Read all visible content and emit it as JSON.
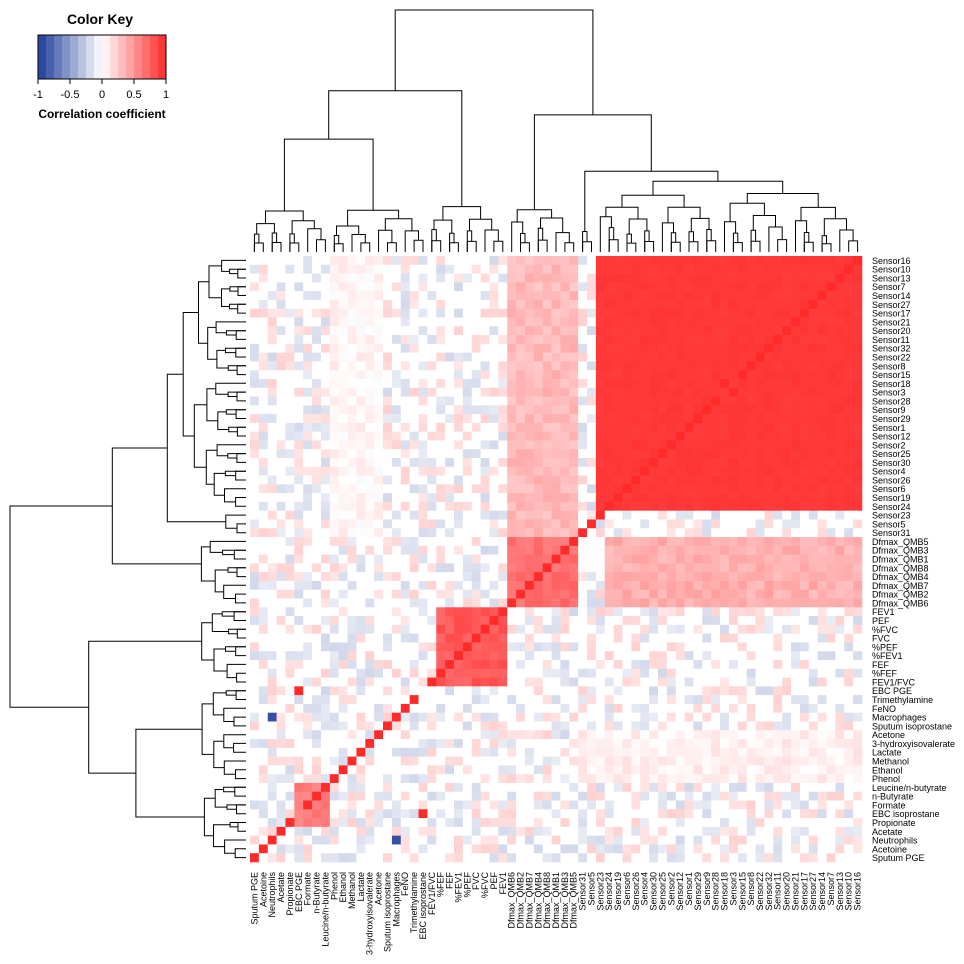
{
  "chart_data": {
    "type": "heatmap",
    "title": "",
    "color_key": {
      "title": "Color Key",
      "label": "Correlation coefficient",
      "range": [
        -1,
        1
      ],
      "ticks": [
        "-1",
        "-0.5",
        "0",
        "0.5",
        "1"
      ],
      "colors": {
        "low": "#1f3d99",
        "mid": "#ffffff",
        "high": "#ff2a2a"
      }
    },
    "row_labels": [
      "Sensor16",
      "Sensor10",
      "Sensor13",
      "Sensor7",
      "Sensor14",
      "Sensor27",
      "Sensor17",
      "Sensor21",
      "Sensor20",
      "Sensor11",
      "Sensor32",
      "Sensor22",
      "Sensor8",
      "Sensor15",
      "Sensor18",
      "Sensor3",
      "Sensor28",
      "Sensor9",
      "Sensor29",
      "Sensor1",
      "Sensor12",
      "Sensor2",
      "Sensor25",
      "Sensor30",
      "Sensor4",
      "Sensor26",
      "Sensor6",
      "Sensor19",
      "Sensor24",
      "Sensor23",
      "Sensor5",
      "Sensor31",
      "Dfmax_QMB5",
      "Dfmax_QMB3",
      "Dfmax_QMB1",
      "Dfmax_QMB8",
      "Dfmax_QMB4",
      "Dfmax_QMB7",
      "Dfmax_QMB2",
      "Dfmax_QMB6",
      "FEV1",
      "PEF",
      "%FVC",
      "FVC",
      "%PEF",
      "%FEV1",
      "FEF",
      "%FEF",
      "FEV1/FVC",
      "EBC PGE",
      "Trimethylamine",
      "FeNO",
      "Macrophages",
      "Sputum isoprostane",
      "Acetone",
      "3-hydroxyisovalerate",
      "Lactate",
      "Methanol",
      "Ethanol",
      "Phenol",
      "Leucine/n-butyrate",
      "n-Butyrate",
      "Formate",
      "EBC isoprostane",
      "Propionate",
      "Acetate",
      "Neutrophils",
      "Acetoine",
      "Sputum PGE"
    ],
    "column_labels": [
      "Sputum PGE",
      "Acetoine",
      "Neutrophils",
      "Acetate",
      "Propionate",
      "EBC PGE",
      "Formate",
      "n-Butyrate",
      "Leucine/n-butyrate",
      "Phenol",
      "Ethanol",
      "Methanol",
      "Lactate",
      "3-hydroxyisovalerate",
      "Acetone",
      "Sputum isoprostane",
      "Macrophages",
      "FeNO",
      "Trimethylamine",
      "EBC isoprostane",
      "FEV1/FVC",
      "%FEF",
      "FEF",
      "%FEV1",
      "%PEF",
      "FVC",
      "%FVC",
      "PEF",
      "FEV1",
      "Dfmax_QMB6",
      "Dfmax_QMB2",
      "Dfmax_QMB7",
      "Dfmax_QMB4",
      "Dfmax_QMB8",
      "Dfmax_QMB1",
      "Dfmax_QMB3",
      "Dfmax_QMB5",
      "Sensor31",
      "Sensor5",
      "Sensor23",
      "Sensor24",
      "Sensor19",
      "Sensor6",
      "Sensor26",
      "Sensor4",
      "Sensor30",
      "Sensor25",
      "Sensor2",
      "Sensor12",
      "Sensor1",
      "Sensor29",
      "Sensor9",
      "Sensor28",
      "Sensor18",
      "Sensor3",
      "Sensor15",
      "Sensor8",
      "Sensor22",
      "Sensor32",
      "Sensor11",
      "Sensor20",
      "Sensor21",
      "Sensor17",
      "Sensor27",
      "Sensor14",
      "Sensor7",
      "Sensor13",
      "Sensor10",
      "Sensor16"
    ],
    "cluster_blocks": [
      {
        "rows": [
          "Sensor16",
          "Sensor24"
        ],
        "cols": [
          "Sensor23",
          "Sensor16"
        ],
        "value": 0.95
      },
      {
        "rows": [
          "Dfmax_QMB5",
          "Dfmax_QMB6"
        ],
        "cols": [
          "Dfmax_QMB6",
          "Dfmax_QMB5"
        ],
        "value": 0.75
      },
      {
        "rows": [
          "Dfmax_QMB5",
          "Dfmax_QMB6"
        ],
        "cols": [
          "Sensor24",
          "Sensor16"
        ],
        "value": 0.45
      },
      {
        "rows": [
          "Sensor16",
          "Sensor31"
        ],
        "cols": [
          "Dfmax_QMB6",
          "Dfmax_QMB5"
        ],
        "value": 0.4
      },
      {
        "rows": [
          "FEV1",
          "FEV1/FVC"
        ],
        "cols": [
          "%FEF",
          "FEV1"
        ],
        "value": 0.85
      },
      {
        "rows": [
          "Leucine/n-butyrate",
          "Propionate"
        ],
        "cols": [
          "EBC PGE",
          "Leucine/n-butyrate"
        ],
        "value": 0.7
      },
      {
        "rows": [
          "Acetone",
          "Phenol"
        ],
        "cols": [
          "Sensor31",
          "Sensor16"
        ],
        "value": 0.15
      },
      {
        "rows": [
          "Sensor16",
          "Sensor31"
        ],
        "cols": [
          "Phenol",
          "Acetone"
        ],
        "value": 0.12
      }
    ],
    "diagonal_value": 1,
    "notable_negative": [
      {
        "row": "Macrophages",
        "col": "Neutrophils",
        "value": -0.9
      },
      {
        "row": "Neutrophils",
        "col": "Macrophages",
        "value": -0.9
      }
    ],
    "dendrograms": {
      "rows": "left",
      "columns": "top"
    }
  }
}
